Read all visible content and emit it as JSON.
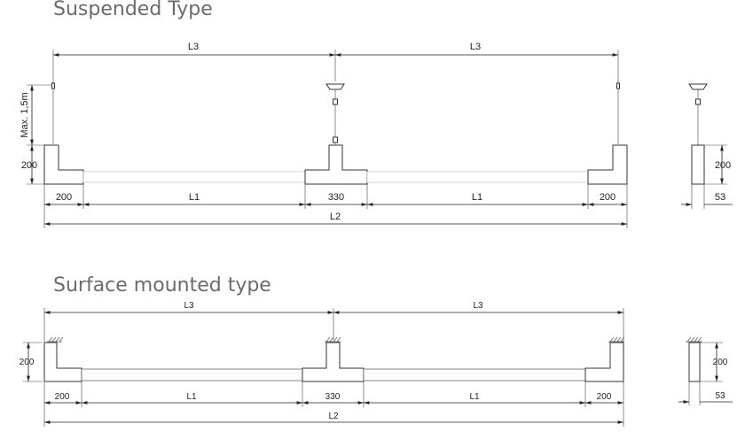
{
  "suspended": {
    "title": "Suspended Type",
    "dim_L3_left": "L3",
    "dim_L3_right": "L3",
    "dim_max_height": "Max. 1,5m",
    "dim_height": "200",
    "dim_end_left": "200",
    "dim_L1_left": "L1",
    "dim_mid": "330",
    "dim_L1_right": "L1",
    "dim_end_right": "200",
    "dim_L2": "L2",
    "side_height": "200",
    "side_width": "53"
  },
  "surface": {
    "title": "Surface mounted type",
    "dim_L3_left": "L3",
    "dim_L3_right": "L3",
    "dim_height": "200",
    "dim_end_left": "200",
    "dim_L1_left": "L1",
    "dim_mid": "330",
    "dim_L1_right": "L1",
    "dim_end_right": "200",
    "dim_L2": "L2",
    "side_height": "200",
    "side_width": "53"
  },
  "colors": {
    "line": "#222222",
    "title": "#6b6b6b"
  }
}
